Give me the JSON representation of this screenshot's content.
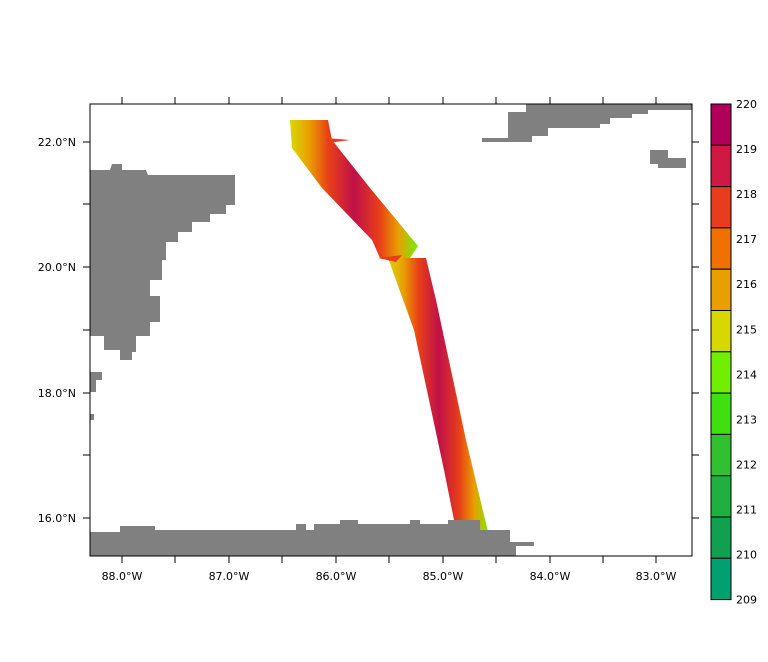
{
  "map": {
    "lon_labels": [
      "88.0°W",
      "87.0°W",
      "86.0°W",
      "85.0°W",
      "84.0°W",
      "83.0°W"
    ],
    "lat_labels": [
      "22.0°N",
      "20.0°N",
      "18.0°N",
      "16.0°N"
    ],
    "land_color": "#808080",
    "swath_colors": [
      "#00a070",
      "#20b040",
      "#40c820",
      "#70f000",
      "#d8d800",
      "#e8a000",
      "#f07000",
      "#e84018",
      "#d82040",
      "#b0005a"
    ]
  },
  "colorbar": {
    "labels": [
      "220",
      "219",
      "218",
      "217",
      "216",
      "215",
      "214",
      "213",
      "212",
      "211",
      "210",
      "209"
    ],
    "colors": [
      "#b0005a",
      "#d01845",
      "#e83c1e",
      "#f07000",
      "#e8a000",
      "#d8d800",
      "#70f000",
      "#40e010",
      "#30c030",
      "#20b040",
      "#10a050",
      "#00a070"
    ]
  }
}
